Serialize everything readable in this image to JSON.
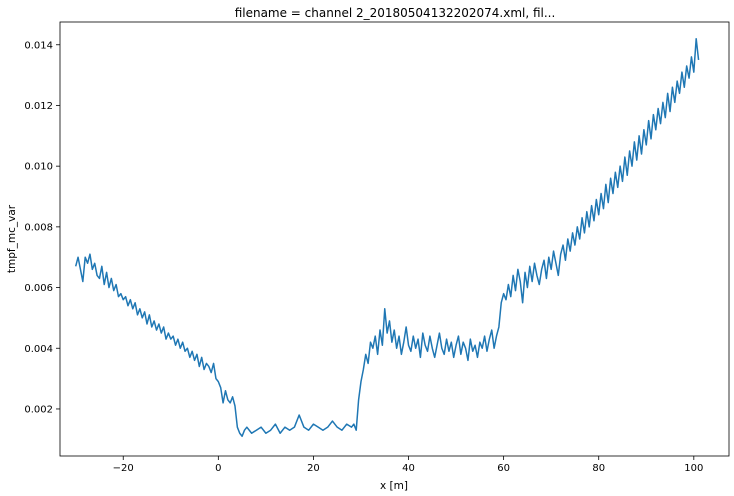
{
  "chart_data": {
    "type": "line",
    "title": "filename = channel 2_20180504132202074.xml, fil...",
    "xlabel": "x [m]",
    "ylabel": "tmpf_mc_var",
    "xlim": [
      -33.3,
      107.4
    ],
    "ylim": [
      0.00045,
      0.01475
    ],
    "grid": false,
    "color": "#1f77b4",
    "x_ticks": [
      {
        "value": -20,
        "label": "−20"
      },
      {
        "value": 0,
        "label": "0"
      },
      {
        "value": 20,
        "label": "20"
      },
      {
        "value": 40,
        "label": "40"
      },
      {
        "value": 60,
        "label": "60"
      },
      {
        "value": 80,
        "label": "80"
      },
      {
        "value": 100,
        "label": "100"
      }
    ],
    "y_ticks": [
      {
        "value": 0.002,
        "label": "0.002"
      },
      {
        "value": 0.004,
        "label": "0.004"
      },
      {
        "value": 0.006,
        "label": "0.006"
      },
      {
        "value": 0.008,
        "label": "0.008"
      },
      {
        "value": 0.01,
        "label": "0.010"
      },
      {
        "value": 0.012,
        "label": "0.012"
      },
      {
        "value": 0.014,
        "label": "0.014"
      }
    ],
    "series": [
      {
        "x": [
          -30,
          -29.5,
          -29,
          -28.5,
          -28,
          -27.5,
          -27,
          -26.5,
          -26,
          -25.5,
          -25,
          -24.5,
          -24,
          -23.5,
          -23,
          -22.5,
          -22,
          -21.5,
          -21,
          -20.5,
          -20,
          -19.5,
          -19,
          -18.5,
          -18,
          -17.5,
          -17,
          -16.5,
          -16,
          -15.5,
          -15,
          -14.5,
          -14,
          -13.5,
          -13,
          -12.5,
          -12,
          -11.5,
          -11,
          -10.5,
          -10,
          -9.5,
          -9,
          -8.5,
          -8,
          -7.5,
          -7,
          -6.5,
          -6,
          -5.5,
          -5,
          -4.5,
          -4,
          -3.5,
          -3,
          -2.5,
          -2,
          -1.5,
          -1,
          -0.5,
          0,
          0.5,
          1,
          1.5,
          2,
          2.5,
          3,
          3.5,
          4,
          4.5,
          5,
          5.5,
          6,
          7,
          8,
          9,
          10,
          11,
          12,
          13,
          14,
          15,
          16,
          17,
          18,
          19,
          20,
          21,
          22,
          23,
          24,
          25,
          26,
          27,
          28,
          28.5,
          29,
          29.5,
          30,
          30.5,
          31,
          31.5,
          32,
          32.5,
          33,
          33.5,
          34,
          34.5,
          35,
          35.5,
          36,
          36.5,
          37,
          37.5,
          38,
          38.5,
          39,
          39.5,
          40,
          40.5,
          41,
          41.5,
          42,
          42.5,
          43,
          43.5,
          44,
          44.5,
          45,
          45.5,
          46,
          46.5,
          47,
          47.5,
          48,
          48.5,
          49,
          49.5,
          50,
          50.5,
          51,
          51.5,
          52,
          52.5,
          53,
          53.5,
          54,
          54.5,
          55,
          55.5,
          56,
          56.5,
          57,
          57.5,
          58,
          58.5,
          59,
          59.5,
          60,
          60.5,
          61,
          61.5,
          62,
          62.5,
          63,
          63.5,
          64,
          64.5,
          65,
          65.5,
          66,
          66.5,
          67,
          67.5,
          68,
          68.5,
          69,
          69.5,
          70,
          70.5,
          71,
          71.5,
          72,
          72.5,
          73,
          73.5,
          74,
          74.5,
          75,
          75.5,
          76,
          76.5,
          77,
          77.5,
          78,
          78.5,
          79,
          79.5,
          80,
          80.5,
          81,
          81.5,
          82,
          82.5,
          83,
          83.5,
          84,
          84.5,
          85,
          85.5,
          86,
          86.5,
          87,
          87.5,
          88,
          88.5,
          89,
          89.5,
          90,
          90.5,
          91,
          91.5,
          92,
          92.5,
          93,
          93.5,
          94,
          94.5,
          95,
          95.5,
          96,
          96.5,
          97,
          97.5,
          98,
          98.5,
          99,
          99.5,
          100,
          100.5,
          101
        ],
        "y": [
          0.0067,
          0.007,
          0.0066,
          0.0062,
          0.007,
          0.0068,
          0.0071,
          0.0066,
          0.0068,
          0.0064,
          0.0063,
          0.0067,
          0.0061,
          0.0065,
          0.006,
          0.0063,
          0.0059,
          0.0061,
          0.0057,
          0.0058,
          0.0056,
          0.0057,
          0.0054,
          0.0056,
          0.0053,
          0.0055,
          0.0051,
          0.0053,
          0.005,
          0.0052,
          0.0048,
          0.0051,
          0.0047,
          0.0049,
          0.0046,
          0.0048,
          0.0045,
          0.0047,
          0.0043,
          0.0045,
          0.0043,
          0.0044,
          0.0041,
          0.0043,
          0.004,
          0.0042,
          0.0039,
          0.004,
          0.0037,
          0.0039,
          0.0036,
          0.0038,
          0.0034,
          0.0037,
          0.0033,
          0.0035,
          0.0034,
          0.0032,
          0.0035,
          0.003,
          0.0029,
          0.0027,
          0.0022,
          0.0026,
          0.0023,
          0.0022,
          0.0024,
          0.0021,
          0.0014,
          0.0012,
          0.0011,
          0.0013,
          0.0014,
          0.0012,
          0.0013,
          0.0014,
          0.0012,
          0.0013,
          0.0015,
          0.0012,
          0.0014,
          0.0013,
          0.0014,
          0.0018,
          0.0014,
          0.0013,
          0.0015,
          0.0014,
          0.0013,
          0.0014,
          0.0016,
          0.0014,
          0.0013,
          0.0015,
          0.0014,
          0.0015,
          0.0013,
          0.0023,
          0.0029,
          0.0033,
          0.0038,
          0.0035,
          0.0042,
          0.004,
          0.0044,
          0.0038,
          0.0046,
          0.0041,
          0.0053,
          0.0045,
          0.0049,
          0.0042,
          0.0046,
          0.004,
          0.0044,
          0.0038,
          0.0042,
          0.0047,
          0.0041,
          0.0039,
          0.0044,
          0.004,
          0.0043,
          0.0037,
          0.0045,
          0.0041,
          0.0039,
          0.0044,
          0.004,
          0.0037,
          0.0041,
          0.0045,
          0.004,
          0.0038,
          0.0043,
          0.0039,
          0.0042,
          0.0037,
          0.0041,
          0.0044,
          0.0038,
          0.0042,
          0.004,
          0.0036,
          0.0043,
          0.0039,
          0.0041,
          0.0037,
          0.0042,
          0.004,
          0.0044,
          0.0039,
          0.0043,
          0.0046,
          0.004,
          0.0044,
          0.0047,
          0.0055,
          0.0058,
          0.0056,
          0.0061,
          0.0057,
          0.0064,
          0.0059,
          0.0066,
          0.0062,
          0.0055,
          0.0065,
          0.006,
          0.0067,
          0.0062,
          0.0068,
          0.0064,
          0.0061,
          0.0066,
          0.0069,
          0.0063,
          0.007,
          0.0066,
          0.0072,
          0.0068,
          0.0064,
          0.0071,
          0.0074,
          0.0069,
          0.0076,
          0.0072,
          0.0078,
          0.0074,
          0.008,
          0.0076,
          0.0083,
          0.0078,
          0.0085,
          0.008,
          0.0087,
          0.0082,
          0.0089,
          0.0084,
          0.0091,
          0.0086,
          0.0094,
          0.0088,
          0.0096,
          0.0091,
          0.0098,
          0.0093,
          0.01,
          0.0095,
          0.0103,
          0.0097,
          0.0105,
          0.01,
          0.0108,
          0.0102,
          0.011,
          0.0104,
          0.0112,
          0.0107,
          0.0115,
          0.0109,
          0.0117,
          0.0112,
          0.0119,
          0.0114,
          0.0121,
          0.0116,
          0.0124,
          0.0118,
          0.0126,
          0.0121,
          0.0128,
          0.0124,
          0.0131,
          0.0126,
          0.0133,
          0.0129,
          0.0136,
          0.0131,
          0.0142,
          0.0135
        ]
      }
    ]
  }
}
